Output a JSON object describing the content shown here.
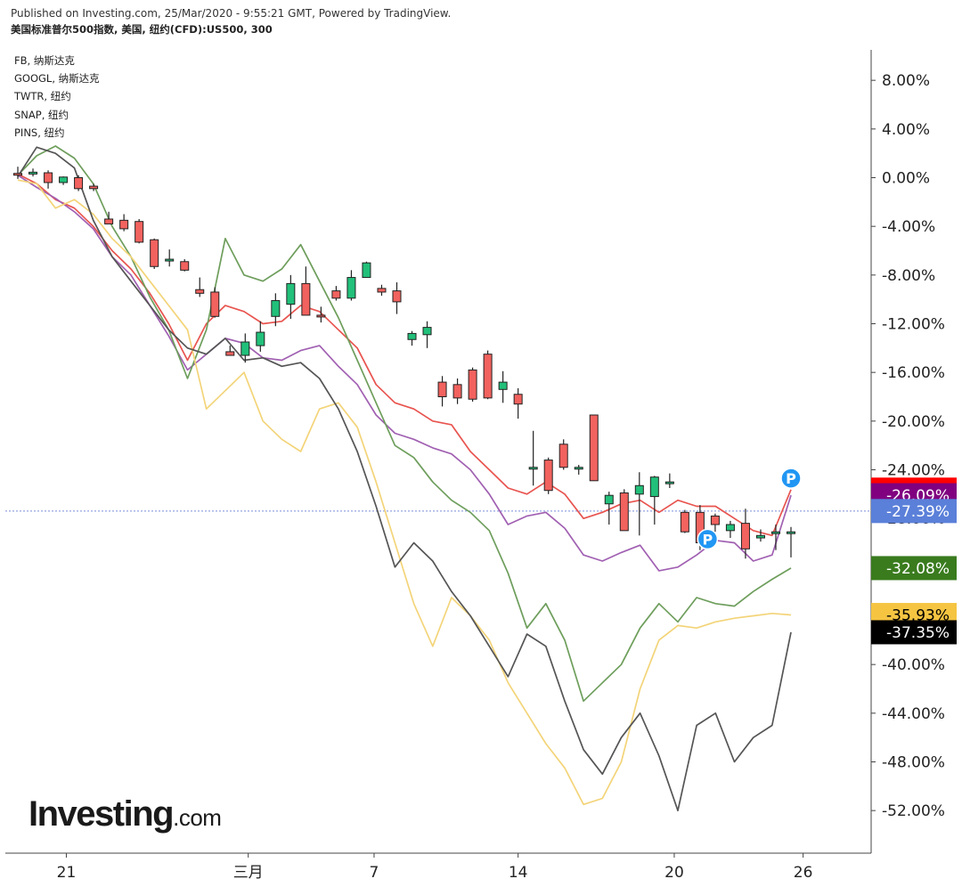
{
  "header": {
    "published": "Published on Investing.com, 25/Mar/2020 - 9:55:21 GMT, Powered by TradingView.",
    "symbol": "美国标准普尔500指数, 美国, 纽约(CFD):US500, 300"
  },
  "legend": [
    "FB, 纳斯达克",
    "GOOGL, 纳斯达克",
    "TWTR, 纽约",
    "SNAP, 纽约",
    "PINS, 纽约"
  ],
  "logo": {
    "main": "Investing",
    "suffix": ".com"
  },
  "colors": {
    "up": "#22c07a",
    "down": "#f2625e",
    "FB": "#e8544f",
    "GOOGL": "#a160b2",
    "TWTR": "#6e9e5c",
    "SNAP": "#f3d479",
    "PINS": "#555555",
    "price_line": "#7b8fd9",
    "marker": "#2196f3"
  },
  "chart_data": {
    "type": "candlestick+line",
    "y_unit": "%",
    "ylim": [
      -55.5,
      10.5
    ],
    "y_ticks": [
      "8.00%",
      "4.00%",
      "0.00%",
      "-4.00%",
      "-8.00%",
      "-12.00%",
      "-16.00%",
      "-20.00%",
      "-24.00%",
      "-28.00%",
      "-32.00%",
      "-36.00%",
      "-40.00%",
      "-44.00%",
      "-48.00%",
      "-52.00%"
    ],
    "x_ticks": [
      "21",
      "三月",
      "7",
      "14",
      "20",
      "26"
    ],
    "candles": [
      {
        "t": "Feb 20 12:00",
        "o": 0.35,
        "h": 0.9,
        "l": -0.1,
        "c": 0.3
      },
      {
        "t": "Feb 20 17:00",
        "o": 0.3,
        "h": 0.75,
        "l": 0.1,
        "c": 0.45
      },
      {
        "t": "Feb 21 08:00",
        "o": 0.4,
        "h": 0.6,
        "l": -0.9,
        "c": -0.4
      },
      {
        "t": "Feb 21 13:00",
        "o": -0.4,
        "h": 0.1,
        "l": -0.6,
        "c": 0.05
      },
      {
        "t": "Feb 21 18:00",
        "o": 0.0,
        "h": 0.2,
        "l": -1.1,
        "c": -0.9
      },
      {
        "t": "Feb 24 03:00",
        "o": -0.7,
        "h": -0.5,
        "l": -1.1,
        "c": -0.9
      },
      {
        "t": "Feb 24 08:00",
        "o": -3.4,
        "h": -2.8,
        "l": -3.8,
        "c": -3.8
      },
      {
        "t": "Feb 24 13:00",
        "o": -3.5,
        "h": -3.0,
        "l": -4.4,
        "c": -4.2
      },
      {
        "t": "Feb 24 18:00",
        "o": -3.6,
        "h": -3.4,
        "l": -5.4,
        "c": -5.3
      },
      {
        "t": "Feb 25 08:00",
        "o": -5.1,
        "h": -5.0,
        "l": -7.5,
        "c": -7.3
      },
      {
        "t": "Feb 25 13:00",
        "o": -6.7,
        "h": -5.9,
        "l": -7.3,
        "c": -6.7
      },
      {
        "t": "Feb 25 18:00",
        "o": -6.9,
        "h": -6.7,
        "l": -7.7,
        "c": -7.6
      },
      {
        "t": "Feb 26 08:00",
        "o": -9.2,
        "h": -8.2,
        "l": -9.8,
        "c": -9.5
      },
      {
        "t": "Feb 26 13:00",
        "o": -9.4,
        "h": -9.0,
        "l": -11.5,
        "c": -11.4
      },
      {
        "t": "Feb 27 08:00",
        "o": -14.3,
        "h": -13.8,
        "l": -14.6,
        "c": -14.6
      },
      {
        "t": "Feb 27 13:00",
        "o": -14.6,
        "h": -12.8,
        "l": -15.2,
        "c": -13.5
      },
      {
        "t": "Feb 27 18:00",
        "o": -13.8,
        "h": -11.8,
        "l": -14.3,
        "c": -12.7
      },
      {
        "t": "Feb 28 13:00",
        "o": -11.4,
        "h": -9.5,
        "l": -12.2,
        "c": -10.1
      },
      {
        "t": "Mar 2 03:00",
        "o": -10.4,
        "h": -8.0,
        "l": -11.6,
        "c": -8.7
      },
      {
        "t": "Mar 2 08:00",
        "o": -8.7,
        "h": -7.3,
        "l": -11.3,
        "c": -11.3
      },
      {
        "t": "Mar 2 13:00",
        "o": -11.3,
        "h": -10.6,
        "l": -11.9,
        "c": -11.4
      },
      {
        "t": "Mar 3 03:00",
        "o": -9.3,
        "h": -8.9,
        "l": -10.1,
        "c": -9.9
      },
      {
        "t": "Mar 3 08:00",
        "o": -9.9,
        "h": -7.6,
        "l": -10.1,
        "c": -8.2
      },
      {
        "t": "Mar 3 13:00",
        "o": -8.2,
        "h": -6.9,
        "l": -8.2,
        "c": -7.0
      },
      {
        "t": "Mar 4 08:00",
        "o": -9.1,
        "h": -8.8,
        "l": -9.7,
        "c": -9.4
      },
      {
        "t": "Mar 4 13:00",
        "o": -9.3,
        "h": -8.6,
        "l": -11.2,
        "c": -10.2
      },
      {
        "t": "Mar 5 08:00",
        "o": -13.3,
        "h": -12.6,
        "l": -13.8,
        "c": -12.8
      },
      {
        "t": "Mar 5 13:00",
        "o": -12.9,
        "h": -11.8,
        "l": -14.0,
        "c": -12.3
      },
      {
        "t": "Mar 6 08:00",
        "o": -16.8,
        "h": -16.3,
        "l": -18.8,
        "c": -18.0
      },
      {
        "t": "Mar 6 13:00",
        "o": -17.0,
        "h": -16.5,
        "l": -18.6,
        "c": -18.1
      },
      {
        "t": "Mar 6 18:00",
        "o": -15.8,
        "h": -15.6,
        "l": -18.4,
        "c": -18.2
      },
      {
        "t": "Mar 9 03:00",
        "o": -14.5,
        "h": -14.2,
        "l": -18.2,
        "c": -18.1
      },
      {
        "t": "Mar 9 08:00",
        "o": -17.4,
        "h": -15.9,
        "l": -18.5,
        "c": -16.8
      },
      {
        "t": "Mar 9 13:00",
        "o": -17.8,
        "h": -17.3,
        "l": -19.8,
        "c": -18.6
      },
      {
        "t": "Mar 10 08:00",
        "o": -23.8,
        "h": -20.8,
        "l": -25.3,
        "c": -23.8
      },
      {
        "t": "Mar 10 13:00",
        "o": -23.2,
        "h": -23.0,
        "l": -26.0,
        "c": -25.7
      },
      {
        "t": "Mar 11 03:00",
        "o": -21.9,
        "h": -21.5,
        "l": -24.0,
        "c": -23.8
      },
      {
        "t": "Mar 11 08:00",
        "o": -23.8,
        "h": -23.6,
        "l": -24.4,
        "c": -23.8
      },
      {
        "t": "Mar 11 13:00",
        "o": -19.5,
        "h": -19.5,
        "l": -24.9,
        "c": -24.9
      },
      {
        "t": "Mar 12 08:00",
        "o": -26.8,
        "h": -25.8,
        "l": -28.5,
        "c": -26.1
      },
      {
        "t": "Mar 12 13:00",
        "o": -25.9,
        "h": -25.6,
        "l": -29.0,
        "c": -29.0
      },
      {
        "t": "Mar 12 18:00",
        "o": -26.0,
        "h": -24.2,
        "l": -29.4,
        "c": -25.3
      },
      {
        "t": "Mar 13 08:00",
        "o": -26.2,
        "h": -24.5,
        "l": -28.5,
        "c": -24.6
      },
      {
        "t": "Mar 13 13:00",
        "o": -25.0,
        "h": -24.3,
        "l": -25.5,
        "c": -25.0
      },
      {
        "t": "Mar 16 08:00",
        "o": -27.5,
        "h": -27.3,
        "l": -29.2,
        "c": -29.1
      },
      {
        "t": "Mar 16 13:00",
        "o": -27.5,
        "h": -26.9,
        "l": -30.6,
        "c": -30.0
      },
      {
        "t": "Mar 17 03:00",
        "o": -27.8,
        "h": -27.6,
        "l": -29.1,
        "c": -28.5
      },
      {
        "t": "Mar 17 08:00",
        "o": -29.0,
        "h": -28.2,
        "l": -29.6,
        "c": -28.5
      },
      {
        "t": "Mar 17 13:00",
        "o": -28.4,
        "h": -27.2,
        "l": -31.3,
        "c": -30.5
      },
      {
        "t": "Mar 17 18:00",
        "o": -29.6,
        "h": -28.9,
        "l": -29.9,
        "c": -29.4
      },
      {
        "t": "Mar 18 08:00",
        "o": -29.2,
        "h": -28.5,
        "l": -30.6,
        "c": -29.1
      },
      {
        "t": "Mar 18 13:00",
        "o": -29.2,
        "h": -28.7,
        "l": -31.2,
        "c": -29.1
      }
    ],
    "series": [
      {
        "name": "FB",
        "values": [
          0.3,
          -0.5,
          -1.8,
          -2.5,
          -4.0,
          -6.0,
          -7.5,
          -9.5,
          -12.0,
          -15.0,
          -12.0,
          -10.5,
          -11.0,
          -12.0,
          -11.8,
          -10.5,
          -11.0,
          -12.5,
          -14.0,
          -17.0,
          -18.5,
          -19.0,
          -20.0,
          -20.3,
          -22.5,
          -24.0,
          -25.5,
          -26.0,
          -25.0,
          -26.0,
          -28.0,
          -27.5,
          -26.8,
          -26.5,
          -27.5,
          -26.5,
          -27.0,
          -27.0,
          -28.0,
          -29.0,
          -29.4,
          -25.63
        ]
      },
      {
        "name": "GOOGL",
        "values": [
          0.2,
          -0.8,
          -1.7,
          -2.8,
          -4.2,
          -6.5,
          -8.0,
          -10.5,
          -13.0,
          -15.8,
          -14.5,
          -13.2,
          -13.6,
          -14.8,
          -15.0,
          -14.2,
          -13.8,
          -15.5,
          -17.0,
          -19.5,
          -21.0,
          -21.5,
          -22.2,
          -22.7,
          -24.0,
          -26.0,
          -28.5,
          -27.8,
          -27.5,
          -28.8,
          -31.0,
          -31.5,
          -30.8,
          -30.2,
          -32.3,
          -32.0,
          -31.0,
          -29.8,
          -30.0,
          -31.5,
          -31.0,
          -26.09
        ]
      },
      {
        "name": "TWTR",
        "values": [
          0.2,
          1.8,
          2.6,
          1.6,
          -0.5,
          -4.0,
          -6.5,
          -9.8,
          -12.5,
          -16.5,
          -12.5,
          -5.0,
          -8.0,
          -8.5,
          -7.5,
          -5.5,
          -8.5,
          -11.5,
          -15.0,
          -18.5,
          -22.0,
          -23.0,
          -25.0,
          -26.5,
          -27.5,
          -29.0,
          -32.5,
          -37.0,
          -35.0,
          -38.0,
          -43.0,
          -41.5,
          -40.0,
          -37.0,
          -35.0,
          -36.5,
          -34.5,
          -35.0,
          -35.2,
          -34.0,
          -33.0,
          -32.08
        ]
      },
      {
        "name": "SNAP",
        "values": [
          -0.2,
          -0.5,
          -2.5,
          -1.8,
          -3.0,
          -5.0,
          -6.5,
          -8.5,
          -10.5,
          -12.5,
          -19.0,
          -17.5,
          -16.0,
          -20.0,
          -21.5,
          -22.5,
          -19.0,
          -18.5,
          -20.5,
          -25.0,
          -30.0,
          -35.0,
          -38.5,
          -34.5,
          -36.0,
          -38.0,
          -41.5,
          -44.0,
          -46.5,
          -48.5,
          -51.5,
          -51.0,
          -48.0,
          -42.0,
          -38.0,
          -36.8,
          -37.0,
          -36.5,
          -36.2,
          -36.0,
          -35.8,
          -35.93
        ]
      },
      {
        "name": "PINS",
        "values": [
          0.1,
          2.5,
          2.0,
          0.8,
          -3.5,
          -6.5,
          -8.5,
          -10.5,
          -12.5,
          -14.0,
          -14.5,
          -13.2,
          -15.0,
          -14.8,
          -15.5,
          -15.2,
          -16.5,
          -19.0,
          -22.5,
          -27.0,
          -32.0,
          -30.0,
          -31.5,
          -34.0,
          -36.0,
          -38.5,
          -41.0,
          -37.5,
          -38.5,
          -43.0,
          -47.0,
          -49.0,
          -46.0,
          -44.0,
          -47.5,
          -52.0,
          -45.0,
          -44.0,
          -48.0,
          -46.0,
          -45.0,
          -37.35
        ]
      }
    ],
    "x_index": {
      "line_points_align_to_candle_slots": true
    },
    "last_values": [
      {
        "label": "-25.63%",
        "color": "#ff0000"
      },
      {
        "label": "-26.09%",
        "color": "#800080"
      },
      {
        "label": "-27.39%",
        "color": "#5b80d9"
      },
      {
        "label": "-32.08%",
        "color": "#3a7b1e"
      },
      {
        "label": "-35.93%",
        "color": "#f5c542"
      },
      {
        "label": "-37.35%",
        "color": "#000000"
      }
    ],
    "current_value": -27.39,
    "markers": [
      "P",
      "P"
    ]
  }
}
